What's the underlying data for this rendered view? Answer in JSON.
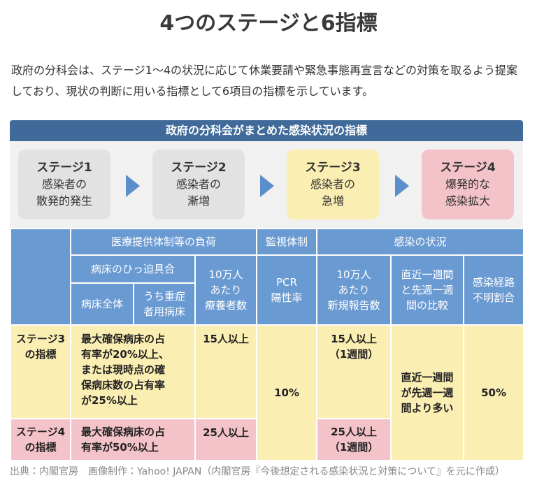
{
  "title": "4つのステージと6指標",
  "intro": "政府の分科会は、ステージ1〜4の状況に応じて休業要請や緊急事態再宣言などの対策を取るよう提案しており、現状の判断に用いる指標として6項目の指標を示しています。",
  "panel": {
    "heading": "政府の分科会がまとめた感染状況の指標",
    "stages": [
      {
        "name": "ステージ1",
        "desc": "感染者の\n散発的発生"
      },
      {
        "name": "ステージ2",
        "desc": "感染者の\n漸増"
      },
      {
        "name": "ステージ3",
        "desc": "感染者の\n急増"
      },
      {
        "name": "ステージ4",
        "desc": "爆発的な\n感染拡大"
      }
    ]
  },
  "table": {
    "groups": [
      "医療提供体制等の負荷",
      "監視体制",
      "感染の状況"
    ],
    "subgroup": "病床のひっ迫具合",
    "columns": [
      "病床全体",
      "うち重症\n者用病床",
      "10万人\nあたり\n療養者数",
      "PCR\n陽性率",
      "10万人\nあたり\n新規報告数",
      "直近一週間\nと先週一週\n間の比較",
      "感染経路\n不明割合"
    ],
    "rows": [
      {
        "label": "ステージ3\nの指標",
        "cells": [
          "最大確保病床の占\n有率が20%以上、\nまたは現時点の確\n保病床数の占有率\nが25%以上",
          "15人以上",
          "10%",
          "15人以上\n（1週間）",
          "直近一週間\nが先週一週\n間より多い",
          "50%"
        ]
      },
      {
        "label": "ステージ4\nの指標",
        "cells": [
          "最大確保病床の占\n有率が50%以上",
          "25人以上",
          "25人以上\n（1週間）"
        ]
      }
    ]
  },
  "footer": "出典：内閣官房　画像制作：Yahoo! JAPAN（内閣官房『今後想定される感染状況と対策について』を元に作成）"
}
